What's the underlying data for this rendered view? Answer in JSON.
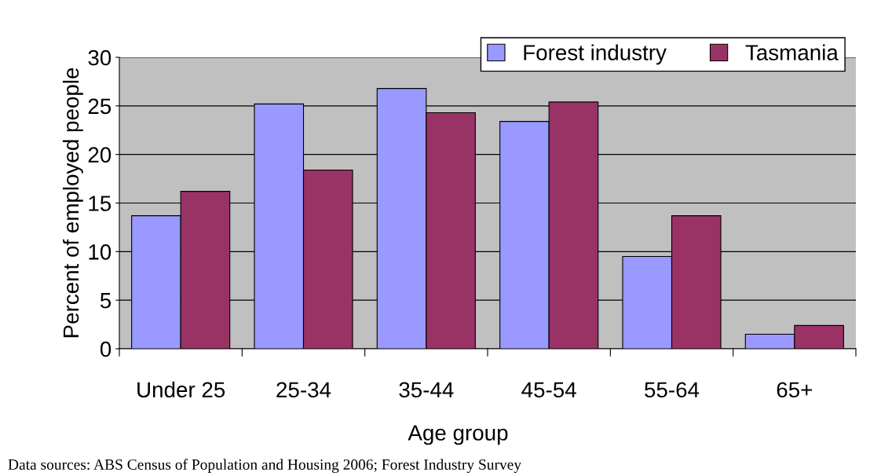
{
  "chart_data": {
    "type": "bar",
    "categories": [
      "Under 25",
      "25-34",
      "35-44",
      "45-54",
      "55-64",
      "65+"
    ],
    "series": [
      {
        "name": "Forest industry",
        "color": "#9999ff",
        "values": [
          13.7,
          25.2,
          26.8,
          23.4,
          9.5,
          1.5
        ]
      },
      {
        "name": "Tasmania",
        "color": "#993366",
        "values": [
          16.2,
          18.4,
          24.3,
          25.4,
          13.7,
          2.4
        ]
      }
    ],
    "xlabel": "Age group",
    "ylabel": "Percent of employed people",
    "ylim": [
      0,
      30
    ],
    "yticks": [
      0,
      5,
      10,
      15,
      20,
      25,
      30
    ],
    "grid": "y",
    "legend": "top right",
    "annotations": [
      "Data sources: ABS Census of Population and Housing 2006; Forest Industry Survey"
    ]
  }
}
